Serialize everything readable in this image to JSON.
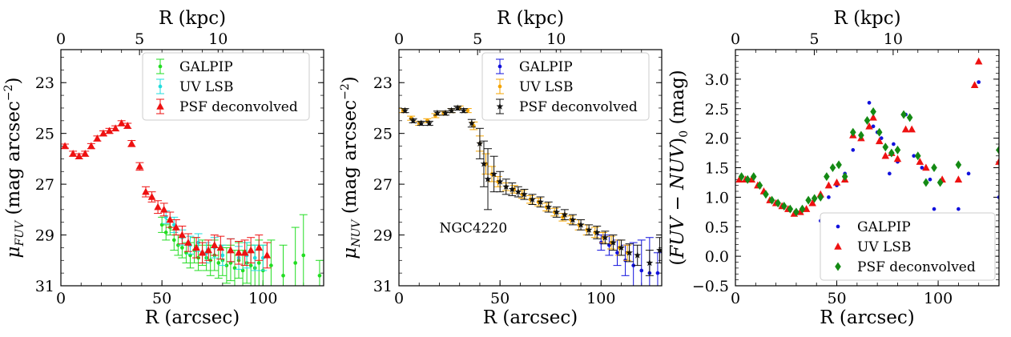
{
  "chart_data": [
    {
      "type": "scatter",
      "panel": "FUV profile",
      "top_axis_label": "R (kpc)",
      "top_ticks": [
        {
          "value": 0,
          "label": "0"
        },
        {
          "value": 5,
          "label": "5"
        },
        {
          "value": 10,
          "label": "10"
        }
      ],
      "xlabel": "R (arcsec)",
      "ylabel_parts": [
        "μ",
        "FUV",
        " (mag arcsec",
        "−2",
        ")"
      ],
      "xlim": [
        0,
        130
      ],
      "ylim": [
        31,
        21.7
      ],
      "xticks": [
        {
          "value": 0,
          "label": "0"
        },
        {
          "value": 50,
          "label": "50"
        },
        {
          "value": 100,
          "label": "100"
        }
      ],
      "yticks": [
        {
          "value": 23,
          "label": "23"
        },
        {
          "value": 25,
          "label": "25"
        },
        {
          "value": 27,
          "label": "27"
        },
        {
          "value": 29,
          "label": "29"
        },
        {
          "value": 31,
          "label": "31"
        }
      ],
      "legend": {
        "position": "top-right"
      },
      "series": [
        {
          "name": "GALPIP",
          "color": "#22dd22",
          "marker": "dot",
          "errorbar": true,
          "x": [
            50,
            52,
            54,
            56,
            58,
            60,
            62,
            64,
            66,
            68,
            70,
            72,
            74,
            76,
            78,
            80,
            82,
            84,
            86,
            88,
            90,
            92,
            94,
            96,
            98,
            100,
            104,
            110,
            116,
            120,
            128
          ],
          "y": [
            28.6,
            28.9,
            28.7,
            29.2,
            29.4,
            29.5,
            29.7,
            29.8,
            29.6,
            29.9,
            29.7,
            29.9,
            30.0,
            29.8,
            30.1,
            30.0,
            30.2,
            30.1,
            30.3,
            30.0,
            30.4,
            30.1,
            30.2,
            30.3,
            30.1,
            30.4,
            30.2,
            30.6,
            30.1,
            29.8,
            30.6
          ],
          "err": [
            0.3,
            0.3,
            0.3,
            0.4,
            0.4,
            0.4,
            0.4,
            0.5,
            0.5,
            0.5,
            0.5,
            0.5,
            0.6,
            0.6,
            0.6,
            0.6,
            0.7,
            0.7,
            0.7,
            0.7,
            0.8,
            0.8,
            0.8,
            0.9,
            0.9,
            1.0,
            1.0,
            1.2,
            1.4,
            1.6,
            0.6
          ]
        },
        {
          "name": "UV LSB",
          "color": "#22dddd",
          "marker": "dot",
          "errorbar": true,
          "x": [
            52,
            56,
            60,
            64,
            68,
            72,
            76,
            80,
            84,
            88,
            92,
            96,
            100
          ],
          "y": [
            28.3,
            28.6,
            29.1,
            29.4,
            29.3,
            29.7,
            29.5,
            29.8,
            29.6,
            29.9,
            29.8,
            29.9,
            29.9
          ],
          "err": [
            0.25,
            0.3,
            0.3,
            0.35,
            0.35,
            0.4,
            0.4,
            0.4,
            0.45,
            0.45,
            0.5,
            0.5,
            0.5
          ]
        },
        {
          "name": "PSF deconvolved",
          "color": "#ee1111",
          "marker": "triangle",
          "errorbar": true,
          "x": [
            2,
            6,
            9,
            12,
            15,
            18,
            21,
            24,
            27,
            30,
            33,
            35,
            39,
            42,
            45,
            48,
            51,
            54,
            57,
            60,
            63,
            67,
            70,
            73,
            76,
            79,
            84,
            88,
            91,
            94,
            98,
            102
          ],
          "y": [
            25.5,
            25.8,
            25.9,
            25.8,
            25.5,
            25.2,
            25.0,
            24.9,
            24.8,
            24.6,
            24.7,
            25.4,
            26.3,
            27.3,
            27.5,
            27.9,
            28.0,
            28.4,
            28.7,
            29.0,
            29.3,
            29.5,
            29.7,
            29.6,
            29.4,
            29.5,
            29.6,
            29.7,
            29.7,
            29.6,
            29.5,
            29.8
          ],
          "err": [
            0.08,
            0.1,
            0.1,
            0.1,
            0.1,
            0.1,
            0.1,
            0.1,
            0.1,
            0.1,
            0.1,
            0.12,
            0.15,
            0.2,
            0.2,
            0.25,
            0.25,
            0.3,
            0.3,
            0.35,
            0.35,
            0.4,
            0.4,
            0.4,
            0.4,
            0.45,
            0.45,
            0.45,
            0.5,
            0.5,
            0.5,
            0.5
          ]
        }
      ]
    },
    {
      "type": "scatter",
      "panel": "NUV profile",
      "top_axis_label": "R (kpc)",
      "top_ticks": [
        {
          "value": 0,
          "label": "0"
        },
        {
          "value": 5,
          "label": "5"
        },
        {
          "value": 10,
          "label": "10"
        }
      ],
      "xlabel": "R (arcsec)",
      "ylabel_parts": [
        "μ",
        "NUV",
        " (mag arcsec",
        "−2",
        ")"
      ],
      "annotation": "NGC4220",
      "xlim": [
        0,
        130
      ],
      "ylim": [
        31,
        21.7
      ],
      "xticks": [
        {
          "value": 0,
          "label": "0"
        },
        {
          "value": 50,
          "label": "50"
        },
        {
          "value": 100,
          "label": "100"
        }
      ],
      "yticks": [
        {
          "value": 23,
          "label": "23"
        },
        {
          "value": 25,
          "label": "25"
        },
        {
          "value": 27,
          "label": "27"
        },
        {
          "value": 29,
          "label": "29"
        },
        {
          "value": 31,
          "label": "31"
        }
      ],
      "legend": {
        "position": "top-right"
      },
      "series": [
        {
          "name": "GALPIP",
          "color": "#1111dd",
          "marker": "dot",
          "errorbar": true,
          "x": [
            100,
            104,
            108,
            112,
            116,
            120,
            124,
            128
          ],
          "y": [
            29.3,
            29.4,
            29.7,
            30.0,
            30.2,
            30.4,
            30.5,
            30.5
          ],
          "err": [
            0.3,
            0.4,
            0.5,
            0.6,
            0.9,
            1.2,
            1.4,
            0.8
          ]
        },
        {
          "name": "UV LSB",
          "color": "#f5a500",
          "marker": "dot",
          "errorbar": true,
          "x": [
            2,
            6,
            10,
            14,
            18,
            22,
            26,
            30,
            34,
            37,
            40,
            43,
            46,
            49,
            53,
            57,
            61,
            65,
            69,
            73,
            77,
            81,
            85,
            89,
            93,
            97,
            101,
            105,
            109,
            113
          ],
          "y": [
            24.1,
            24.4,
            24.6,
            24.5,
            24.3,
            24.2,
            24.1,
            24.0,
            24.1,
            24.7,
            25.4,
            26.2,
            26.6,
            26.9,
            27.1,
            27.2,
            27.4,
            27.6,
            27.7,
            27.9,
            28.1,
            28.3,
            28.4,
            28.6,
            28.8,
            28.9,
            29.1,
            29.3,
            29.5,
            29.7
          ],
          "err": [
            0.08,
            0.08,
            0.08,
            0.08,
            0.08,
            0.08,
            0.08,
            0.08,
            0.08,
            0.15,
            0.3,
            0.4,
            0.3,
            0.2,
            0.15,
            0.15,
            0.15,
            0.15,
            0.15,
            0.15,
            0.15,
            0.15,
            0.15,
            0.2,
            0.2,
            0.2,
            0.2,
            0.25,
            0.3,
            0.3
          ]
        },
        {
          "name": "PSF deconvolved",
          "color": "#111111",
          "marker": "star",
          "errorbar": true,
          "x": [
            3,
            7,
            11,
            15,
            19,
            23,
            26,
            29,
            32,
            36,
            40,
            42,
            44,
            47,
            50,
            53,
            56,
            59,
            62,
            66,
            70,
            74,
            78,
            82,
            86,
            90,
            94,
            98,
            102,
            106,
            110,
            114,
            118,
            124,
            129
          ],
          "y": [
            24.1,
            24.5,
            24.6,
            24.6,
            24.2,
            24.2,
            24.1,
            24.0,
            24.1,
            24.6,
            25.4,
            26.2,
            26.8,
            26.6,
            26.9,
            27.1,
            27.2,
            27.3,
            27.4,
            27.6,
            27.7,
            27.9,
            28.1,
            28.2,
            28.4,
            28.6,
            28.8,
            28.9,
            29.1,
            29.3,
            29.5,
            29.7,
            29.8,
            30.1,
            29.6
          ],
          "err": [
            0.08,
            0.08,
            0.08,
            0.08,
            0.08,
            0.08,
            0.08,
            0.08,
            0.08,
            0.15,
            0.6,
            0.9,
            1.2,
            0.7,
            0.4,
            0.3,
            0.25,
            0.2,
            0.2,
            0.2,
            0.2,
            0.2,
            0.2,
            0.2,
            0.2,
            0.2,
            0.2,
            0.25,
            0.25,
            0.3,
            0.3,
            0.35,
            0.4,
            0.5,
            0.5
          ]
        }
      ]
    },
    {
      "type": "scatter",
      "panel": "FUV-NUV colour",
      "top_axis_label": "R (kpc)",
      "top_ticks": [
        {
          "value": 0,
          "label": "0"
        },
        {
          "value": 5,
          "label": "5"
        },
        {
          "value": 10,
          "label": "10"
        }
      ],
      "xlabel": "R (arcsec)",
      "ylabel_parts": [
        "(",
        "FUV − NUV",
        ")",
        "0",
        " (mag)"
      ],
      "xlim": [
        0,
        130
      ],
      "ylim": [
        -0.5,
        3.5
      ],
      "xticks": [
        {
          "value": 0,
          "label": "0"
        },
        {
          "value": 50,
          "label": "50"
        },
        {
          "value": 100,
          "label": "100"
        }
      ],
      "yticks": [
        {
          "value": -0.5,
          "label": "−0.5"
        },
        {
          "value": 0.0,
          "label": "0.0"
        },
        {
          "value": 0.5,
          "label": "0.5"
        },
        {
          "value": 1.0,
          "label": "1.0"
        },
        {
          "value": 1.5,
          "label": "1.5"
        },
        {
          "value": 2.0,
          "label": "2.0"
        },
        {
          "value": 2.5,
          "label": "2.5"
        },
        {
          "value": 3.0,
          "label": "3.0"
        }
      ],
      "legend": {
        "position": "bottom-right"
      },
      "series": [
        {
          "name": "GALPIP",
          "color": "#1111dd",
          "marker": "dot",
          "errorbar": false,
          "x": [
            42,
            46,
            50,
            54,
            58,
            62,
            66,
            68,
            70,
            72,
            74,
            76,
            78,
            80,
            84,
            88,
            92,
            96,
            98,
            100,
            110,
            115,
            120,
            130
          ],
          "y": [
            0.6,
            1.0,
            1.2,
            1.4,
            1.8,
            2.0,
            2.6,
            2.2,
            2.1,
            2.0,
            1.7,
            1.4,
            1.9,
            1.6,
            2.4,
            1.7,
            1.5,
            1.3,
            0.8,
            0.7,
            0.8,
            1.4,
            2.95,
            1.0
          ]
        },
        {
          "name": "UV LSB",
          "color": "#ee1111",
          "marker": "triangle",
          "errorbar": false,
          "x": [
            2,
            5,
            8,
            11,
            14,
            17,
            20,
            23,
            26,
            29,
            32,
            35,
            38,
            42,
            46,
            50,
            54,
            58,
            62,
            66,
            68,
            71,
            74,
            77,
            80,
            84,
            87,
            91,
            94,
            98,
            102,
            110,
            118,
            120,
            130
          ],
          "y": [
            1.3,
            1.3,
            1.3,
            1.2,
            1.1,
            0.95,
            0.9,
            0.85,
            0.8,
            0.72,
            0.75,
            0.8,
            0.9,
            1.05,
            1.2,
            1.25,
            1.3,
            2.05,
            2.0,
            2.2,
            2.35,
            1.95,
            1.7,
            1.75,
            1.65,
            2.15,
            2.15,
            1.6,
            1.5,
            0.6,
            1.3,
            1.3,
            2.9,
            3.3,
            1.6
          ]
        },
        {
          "name": "PSF deconvolved",
          "color": "#148a14",
          "marker": "diamond",
          "errorbar": false,
          "x": [
            3,
            6,
            9,
            12,
            15,
            18,
            21,
            24,
            27,
            30,
            33,
            36,
            39,
            42,
            45,
            48,
            51,
            54,
            58,
            62,
            65,
            68,
            71,
            74,
            77,
            80,
            83,
            86,
            90,
            94,
            98,
            101,
            110,
            130
          ],
          "y": [
            1.35,
            1.3,
            1.35,
            1.2,
            1.05,
            0.95,
            0.9,
            0.85,
            0.8,
            0.75,
            0.8,
            0.95,
            0.98,
            1.0,
            1.35,
            1.5,
            1.55,
            1.35,
            2.1,
            2.05,
            2.3,
            2.45,
            2.1,
            1.85,
            1.75,
            1.8,
            2.4,
            2.35,
            1.7,
            1.25,
            1.5,
            1.25,
            1.55,
            1.8
          ]
        }
      ]
    }
  ]
}
